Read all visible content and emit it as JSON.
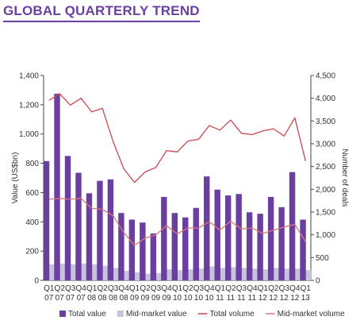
{
  "title": "GLOBAL QUARTERLY TREND",
  "colors": {
    "total_value": "#6b3fa0",
    "mid_value": "#c8c2dc",
    "total_volume": "#c9484f",
    "mid_volume": "#d9787c",
    "title": "#6b3fa0"
  },
  "chart_data": {
    "type": "bar",
    "categories": [
      "Q1 07",
      "Q2 07",
      "Q3 07",
      "Q4 07",
      "Q1 08",
      "Q2 08",
      "Q3 08",
      "Q4 08",
      "Q1 09",
      "Q2 09",
      "Q3 09",
      "Q4 09",
      "Q1 10",
      "Q2 10",
      "Q3 10",
      "Q4 10",
      "Q1 11",
      "Q2 11",
      "Q3 11",
      "Q4 11",
      "Q1 12",
      "Q2 12",
      "Q3 12",
      "Q4 12",
      "Q1 13"
    ],
    "category_lines": [
      [
        "Q1",
        "07"
      ],
      [
        "Q2",
        "07"
      ],
      [
        "Q3",
        "07"
      ],
      [
        "Q4",
        "07"
      ],
      [
        "Q1",
        "08"
      ],
      [
        "Q2",
        "08"
      ],
      [
        "Q3",
        "08"
      ],
      [
        "Q4",
        "08"
      ],
      [
        "Q1",
        "09"
      ],
      [
        "Q2",
        "09"
      ],
      [
        "Q3",
        "09"
      ],
      [
        "Q4",
        "09"
      ],
      [
        "Q1",
        "10"
      ],
      [
        "Q2",
        "10"
      ],
      [
        "Q3",
        "10"
      ],
      [
        "Q4",
        "10"
      ],
      [
        "Q1",
        "11"
      ],
      [
        "Q2",
        "11"
      ],
      [
        "Q3",
        "11"
      ],
      [
        "Q4",
        "11"
      ],
      [
        "Q1",
        "12"
      ],
      [
        "Q2",
        "12"
      ],
      [
        "Q3",
        "12"
      ],
      [
        "Q4",
        "12"
      ],
      [
        "Q1",
        "13"
      ]
    ],
    "ylabel": "Value (US$bn)",
    "y2label": "Number of deals",
    "ylim": [
      0,
      1400
    ],
    "y2lim": [
      0,
      4500
    ],
    "yticks": [
      "0",
      "200",
      "400",
      "600",
      "800",
      "1,000",
      "1,200",
      "1,400"
    ],
    "y2ticks": [
      "0",
      "500",
      "1,000",
      "1,500",
      "2,000",
      "2,500",
      "3,000",
      "3,500",
      "4,000",
      "4,500"
    ],
    "legend_position": "bottom",
    "series": [
      {
        "name": "Total value",
        "type": "bar",
        "axis": "left",
        "values": [
          815,
          1275,
          850,
          735,
          595,
          680,
          690,
          460,
          415,
          395,
          320,
          570,
          460,
          430,
          495,
          710,
          620,
          580,
          590,
          465,
          455,
          570,
          500,
          740,
          415
        ]
      },
      {
        "name": "Mid-market value",
        "type": "bar",
        "axis": "left",
        "values": [
          110,
          115,
          110,
          115,
          110,
          100,
          85,
          65,
          55,
          45,
          50,
          75,
          70,
          75,
          80,
          95,
          85,
          90,
          85,
          80,
          75,
          85,
          80,
          80,
          70
        ]
      },
      {
        "name": "Total volume",
        "type": "line",
        "axis": "right",
        "values": [
          3950,
          4100,
          3850,
          4000,
          3700,
          3780,
          3050,
          2450,
          2150,
          2380,
          2480,
          2850,
          2820,
          3060,
          3100,
          3400,
          3300,
          3520,
          3230,
          3200,
          3280,
          3330,
          3170,
          3570,
          2620
        ]
      },
      {
        "name": "Mid-market volume",
        "type": "line",
        "axis": "right",
        "values": [
          1780,
          1800,
          1780,
          1800,
          1580,
          1560,
          1420,
          1050,
          770,
          930,
          1000,
          1200,
          1020,
          1150,
          1150,
          1290,
          1100,
          1300,
          1130,
          1150,
          1030,
          1100,
          1170,
          1230,
          850
        ]
      }
    ]
  }
}
